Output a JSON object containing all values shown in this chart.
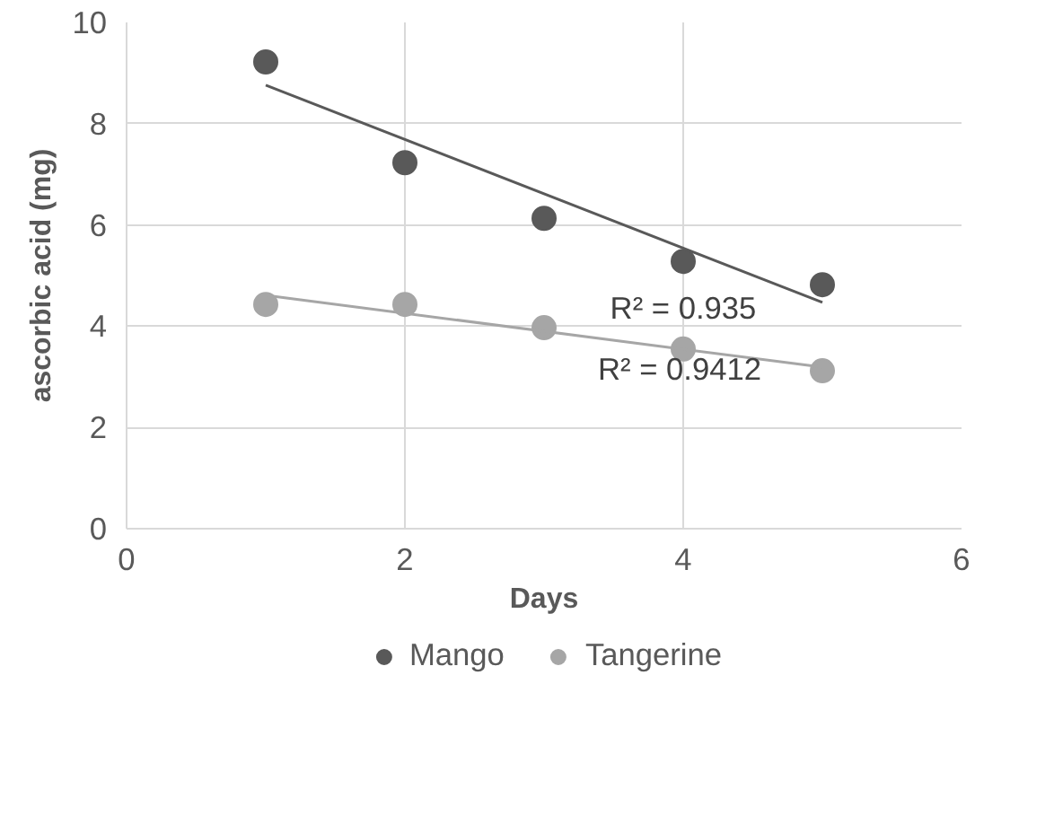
{
  "chart_data": {
    "type": "scatter",
    "xlabel": "Days",
    "ylabel": "ascorbic acid (mg)",
    "xlim": [
      0,
      6
    ],
    "xticks": [
      0,
      2,
      4,
      6
    ],
    "ylim": [
      0,
      10
    ],
    "yticks": [
      0,
      2,
      4,
      6,
      8,
      10
    ],
    "grid": true,
    "legend": "bottom",
    "series": [
      {
        "name": "Mango",
        "color": "#595959",
        "marker": "circle",
        "x": [
          1,
          2,
          3,
          4,
          5
        ],
        "values": [
          9.22,
          7.23,
          6.13,
          5.28,
          4.82
        ]
      },
      {
        "name": "Tangerine",
        "color": "#a6a6a6",
        "marker": "circle",
        "x": [
          1,
          2,
          3,
          4,
          5
        ],
        "values": [
          4.43,
          4.43,
          3.97,
          3.55,
          3.12
        ]
      },
      {
        "type": "line",
        "color": "#595959",
        "x": [
          1,
          5
        ],
        "values": [
          8.76,
          4.47
        ]
      },
      {
        "type": "line",
        "color": "#a6a6a6",
        "x": [
          1,
          5
        ],
        "values": [
          4.61,
          3.19
        ]
      }
    ],
    "annotations": [
      "R² = 0.935",
      "R² = 0.9412"
    ]
  }
}
